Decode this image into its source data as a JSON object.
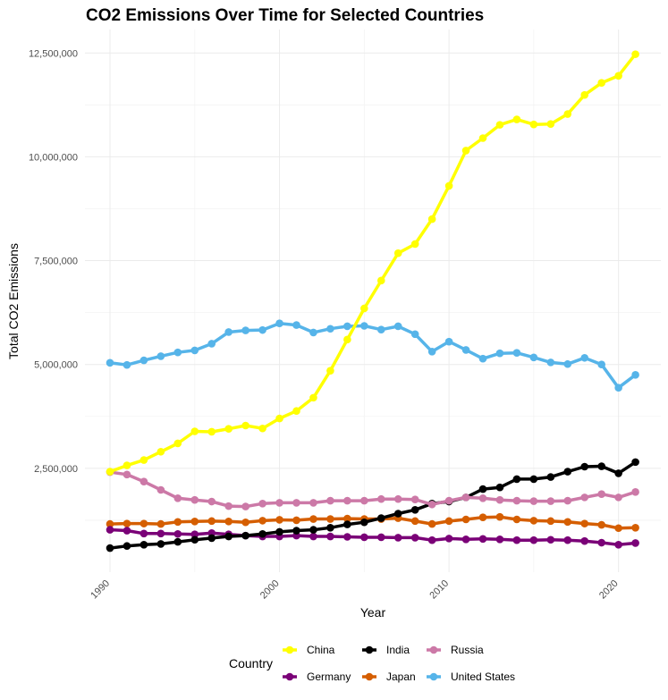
{
  "chart_data": {
    "type": "line",
    "title": "CO2 Emissions Over Time for Selected Countries",
    "xlabel": "Year",
    "ylabel": "Total CO2 Emissions",
    "xlim": [
      1990,
      2021
    ],
    "ylim": [
      0,
      12500000
    ],
    "x_ticks": [
      1990,
      2000,
      2010,
      2020
    ],
    "y_ticks": [
      2500000,
      5000000,
      7500000,
      10000000,
      12500000
    ],
    "y_tick_labels": [
      "2,500,000",
      "5,000,000",
      "7,500,000",
      "10,000,000",
      "12,500,000"
    ],
    "grid": true,
    "legend_position": "bottom",
    "legend_title": "Country",
    "x": [
      1990,
      1991,
      1992,
      1993,
      1994,
      1995,
      1996,
      1997,
      1998,
      1999,
      2000,
      2001,
      2002,
      2003,
      2004,
      2005,
      2006,
      2007,
      2008,
      2009,
      2010,
      2011,
      2012,
      2013,
      2014,
      2015,
      2016,
      2017,
      2018,
      2019,
      2020,
      2021
    ],
    "series": [
      {
        "name": "China",
        "color": "#ffff00",
        "values": [
          2420000,
          2570000,
          2700000,
          2900000,
          3100000,
          3390000,
          3380000,
          3450000,
          3530000,
          3460000,
          3700000,
          3880000,
          4200000,
          4850000,
          5600000,
          6350000,
          7020000,
          7680000,
          7900000,
          8500000,
          9300000,
          10150000,
          10450000,
          10770000,
          10900000,
          10780000,
          10790000,
          11030000,
          11490000,
          11780000,
          11950000,
          12470000
        ]
      },
      {
        "name": "India",
        "color": "#000000",
        "values": [
          580000,
          630000,
          660000,
          680000,
          730000,
          780000,
          820000,
          860000,
          880000,
          920000,
          970000,
          1000000,
          1020000,
          1070000,
          1150000,
          1200000,
          1300000,
          1410000,
          1500000,
          1650000,
          1700000,
          1800000,
          2000000,
          2040000,
          2240000,
          2240000,
          2290000,
          2420000,
          2540000,
          2550000,
          2380000,
          2650000
        ]
      },
      {
        "name": "Russia",
        "color": "#cc79a7",
        "values": [
          2410000,
          2350000,
          2180000,
          1980000,
          1780000,
          1740000,
          1700000,
          1590000,
          1580000,
          1650000,
          1670000,
          1670000,
          1670000,
          1720000,
          1720000,
          1720000,
          1760000,
          1760000,
          1750000,
          1630000,
          1720000,
          1800000,
          1780000,
          1740000,
          1720000,
          1710000,
          1710000,
          1720000,
          1800000,
          1880000,
          1800000,
          1930000
        ]
      },
      {
        "name": "Germany",
        "color": "#7a0177",
        "values": [
          1020000,
          1000000,
          930000,
          930000,
          920000,
          910000,
          940000,
          910000,
          880000,
          860000,
          860000,
          880000,
          860000,
          860000,
          850000,
          840000,
          840000,
          830000,
          830000,
          770000,
          810000,
          790000,
          800000,
          790000,
          770000,
          770000,
          780000,
          770000,
          750000,
          710000,
          660000,
          700000
        ]
      },
      {
        "name": "Japan",
        "color": "#d55e00",
        "values": [
          1160000,
          1170000,
          1170000,
          1160000,
          1210000,
          1220000,
          1230000,
          1220000,
          1200000,
          1240000,
          1260000,
          1250000,
          1280000,
          1280000,
          1290000,
          1280000,
          1280000,
          1300000,
          1230000,
          1160000,
          1230000,
          1270000,
          1320000,
          1330000,
          1270000,
          1240000,
          1230000,
          1210000,
          1170000,
          1140000,
          1060000,
          1070000
        ]
      },
      {
        "name": "United States",
        "color": "#56b4e9",
        "values": [
          5040000,
          4990000,
          5100000,
          5200000,
          5290000,
          5340000,
          5500000,
          5780000,
          5820000,
          5830000,
          5990000,
          5950000,
          5770000,
          5860000,
          5920000,
          5930000,
          5840000,
          5920000,
          5730000,
          5310000,
          5550000,
          5350000,
          5140000,
          5270000,
          5280000,
          5170000,
          5050000,
          5010000,
          5160000,
          5000000,
          4440000,
          4750000
        ]
      }
    ]
  }
}
